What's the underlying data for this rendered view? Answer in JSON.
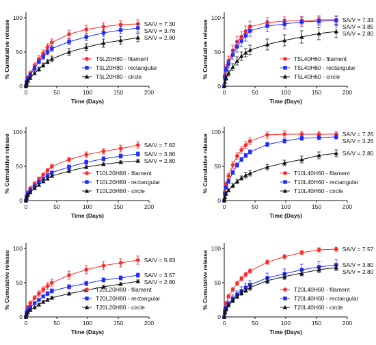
{
  "chart_data": [
    {
      "type": "line",
      "xlabel": "Time (Days)",
      "ylabel": "% Cumulative release",
      "xlim": [
        0,
        200
      ],
      "ylim": [
        0,
        100
      ],
      "xticks": [
        "0",
        "50",
        "100",
        "150",
        "200"
      ],
      "yticks": [
        "0",
        "50",
        "100"
      ],
      "grid": false,
      "legend_position": "bottom-right",
      "series": [
        {
          "name": "T5L20H80 - filament",
          "color": "#ff2a2a",
          "marker": "circle",
          "x": [
            0,
            1,
            3,
            7,
            14,
            21,
            28,
            35,
            42,
            70,
            98,
            126,
            154,
            182
          ],
          "y": [
            0,
            7,
            13,
            19,
            30,
            40,
            48,
            57,
            64,
            76,
            83,
            87,
            90,
            91
          ],
          "err": [
            0,
            1,
            2,
            3,
            4,
            5,
            5,
            5,
            5,
            6,
            6,
            6,
            6,
            6
          ],
          "sav_label": "SA/V = 7.30"
        },
        {
          "name": "T5L20H80 - rectangular",
          "color": "#1f2cff",
          "marker": "square",
          "x": [
            0,
            1,
            3,
            7,
            14,
            21,
            28,
            35,
            42,
            70,
            98,
            126,
            154,
            182
          ],
          "y": [
            0,
            6,
            11,
            17,
            26,
            36,
            43,
            50,
            55,
            65,
            72,
            78,
            82,
            85
          ],
          "err": [
            0,
            1,
            2,
            2,
            3,
            3,
            4,
            4,
            4,
            4,
            5,
            5,
            5,
            6
          ],
          "sav_label": "SA/V = 3.76"
        },
        {
          "name": "T5L20H80 - circle",
          "color": "#111111",
          "marker": "triangle",
          "x": [
            0,
            1,
            3,
            7,
            14,
            21,
            28,
            35,
            42,
            70,
            98,
            126,
            154,
            182
          ],
          "y": [
            0,
            4,
            8,
            12,
            19,
            25,
            31,
            36,
            40,
            50,
            57,
            63,
            67,
            71
          ],
          "err": [
            0,
            1,
            1,
            2,
            2,
            3,
            3,
            3,
            4,
            5,
            5,
            6,
            6,
            6
          ],
          "sav_label": "SA/V = 2.80"
        }
      ]
    },
    {
      "type": "line",
      "xlabel": "Time (Days)",
      "ylabel": "% Cumulative release",
      "xlim": [
        0,
        200
      ],
      "ylim": [
        0,
        100
      ],
      "xticks": [
        "0",
        "50",
        "100",
        "150",
        "200"
      ],
      "yticks": [
        "0",
        "50",
        "100"
      ],
      "grid": false,
      "legend_position": "bottom-right",
      "series": [
        {
          "name": "T5L40H60 - filament",
          "color": "#ff2a2a",
          "marker": "circle",
          "x": [
            0,
            1,
            3,
            7,
            14,
            21,
            28,
            35,
            42,
            70,
            98,
            126,
            154,
            182
          ],
          "y": [
            0,
            15,
            27,
            37,
            52,
            65,
            72,
            80,
            87,
            93,
            95,
            96,
            97,
            97
          ],
          "err": [
            0,
            3,
            5,
            7,
            8,
            8,
            8,
            8,
            8,
            7,
            7,
            6,
            6,
            6
          ],
          "sav_label": "SA/V = 7.33"
        },
        {
          "name": "T5L40H60 - rectangular",
          "color": "#1f2cff",
          "marker": "square",
          "x": [
            0,
            1,
            3,
            7,
            14,
            21,
            28,
            35,
            42,
            70,
            98,
            126,
            154,
            182
          ],
          "y": [
            0,
            13,
            24,
            33,
            46,
            58,
            66,
            74,
            81,
            88,
            91,
            94,
            95,
            96
          ],
          "err": [
            0,
            3,
            5,
            6,
            7,
            8,
            8,
            8,
            8,
            8,
            7,
            7,
            6,
            6
          ],
          "sav_label": "SA/V = 3.85"
        },
        {
          "name": "T5L40H60 - circle",
          "color": "#111111",
          "marker": "triangle",
          "x": [
            0,
            1,
            3,
            7,
            14,
            21,
            28,
            35,
            42,
            70,
            98,
            126,
            154,
            182
          ],
          "y": [
            0,
            6,
            12,
            19,
            28,
            37,
            44,
            49,
            53,
            61,
            67,
            72,
            77,
            80
          ],
          "err": [
            0,
            2,
            3,
            4,
            5,
            6,
            6,
            6,
            7,
            8,
            8,
            9,
            9,
            9
          ],
          "sav_label": "SA/V = 2.80"
        }
      ]
    },
    {
      "type": "line",
      "xlabel": "Time (Days)",
      "ylabel": "% Cumulative release",
      "xlim": [
        0,
        200
      ],
      "ylim": [
        0,
        100
      ],
      "xticks": [
        "0",
        "50",
        "100",
        "150",
        "200"
      ],
      "yticks": [
        "0",
        "50",
        "100"
      ],
      "grid": false,
      "legend_position": "bottom-right",
      "series": [
        {
          "name": "T10L20H80 - filament",
          "color": "#ff2a2a",
          "marker": "circle",
          "x": [
            0,
            1,
            3,
            7,
            14,
            21,
            28,
            35,
            42,
            70,
            98,
            126,
            154,
            182
          ],
          "y": [
            0,
            7,
            12,
            18,
            25,
            32,
            38,
            44,
            50,
            60,
            67,
            72,
            76,
            81
          ],
          "err": [
            0,
            1,
            1,
            2,
            2,
            2,
            2,
            3,
            3,
            3,
            4,
            4,
            5,
            5
          ],
          "sav_label": "SA/V = 7.82"
        },
        {
          "name": "T10L20H80 - rectangular",
          "color": "#1f2cff",
          "marker": "square",
          "x": [
            0,
            1,
            3,
            7,
            14,
            21,
            28,
            35,
            42,
            70,
            98,
            126,
            154,
            182
          ],
          "y": [
            0,
            5,
            10,
            15,
            21,
            27,
            32,
            37,
            41,
            49,
            56,
            61,
            65,
            68
          ],
          "err": [
            0,
            1,
            1,
            1,
            2,
            2,
            2,
            2,
            2,
            3,
            3,
            3,
            3,
            3
          ],
          "sav_label": "SA/V = 3.80"
        },
        {
          "name": "T10L20H80 - circle",
          "color": "#111111",
          "marker": "triangle",
          "x": [
            0,
            1,
            3,
            7,
            14,
            21,
            28,
            35,
            42,
            70,
            98,
            126,
            154,
            182
          ],
          "y": [
            0,
            4,
            8,
            12,
            18,
            23,
            28,
            32,
            36,
            43,
            49,
            53,
            56,
            58
          ],
          "err": [
            0,
            1,
            1,
            1,
            1,
            2,
            2,
            2,
            2,
            2,
            2,
            2,
            2,
            2
          ],
          "sav_label": "SA/V = 2.80"
        }
      ]
    },
    {
      "type": "line",
      "xlabel": "Time (Days)",
      "ylabel": "% Cumulative release",
      "xlim": [
        0,
        200
      ],
      "ylim": [
        0,
        100
      ],
      "xticks": [
        "0",
        "50",
        "100",
        "150",
        "200"
      ],
      "yticks": [
        "0",
        "50",
        "100"
      ],
      "grid": false,
      "legend_position": "bottom-right",
      "series": [
        {
          "name": "T10L40H60 - filament",
          "color": "#ff2a2a",
          "marker": "circle",
          "x": [
            0,
            1,
            3,
            7,
            14,
            21,
            28,
            35,
            42,
            70,
            98,
            126,
            154,
            182
          ],
          "y": [
            0,
            12,
            24,
            36,
            52,
            65,
            74,
            81,
            87,
            96,
            97,
            97,
            97,
            97
          ],
          "err": [
            0,
            2,
            3,
            4,
            5,
            5,
            5,
            5,
            5,
            5,
            5,
            4,
            4,
            4
          ],
          "sav_label": "SA/V = 7.26"
        },
        {
          "name": "T10L40H60 - rectangular",
          "color": "#1f2cff",
          "marker": "square",
          "x": [
            0,
            1,
            3,
            7,
            14,
            21,
            28,
            35,
            42,
            70,
            98,
            126,
            154,
            182
          ],
          "y": [
            0,
            10,
            19,
            28,
            41,
            52,
            60,
            66,
            71,
            82,
            87,
            91,
            92,
            93
          ],
          "err": [
            0,
            2,
            2,
            3,
            3,
            3,
            3,
            3,
            3,
            3,
            3,
            3,
            3,
            3
          ],
          "sav_label": "SA/V = 3.26"
        },
        {
          "name": "T10L40H60 - circle",
          "color": "#111111",
          "marker": "triangle",
          "x": [
            0,
            1,
            3,
            7,
            14,
            21,
            28,
            35,
            42,
            70,
            98,
            126,
            154,
            182
          ],
          "y": [
            0,
            5,
            10,
            15,
            22,
            28,
            33,
            37,
            40,
            49,
            55,
            60,
            66,
            69
          ],
          "err": [
            0,
            1,
            2,
            2,
            3,
            3,
            3,
            4,
            4,
            4,
            4,
            5,
            5,
            5
          ],
          "sav_label": "SA/V = 2.80"
        }
      ]
    },
    {
      "type": "line",
      "xlabel": "Time (Days)",
      "ylabel": "% Cumulative release",
      "xlim": [
        0,
        200
      ],
      "ylim": [
        0,
        100
      ],
      "xticks": [
        "0",
        "50",
        "100",
        "150",
        "200"
      ],
      "yticks": [
        "0",
        "50",
        "100"
      ],
      "grid": false,
      "legend_position": "bottom-right",
      "series": [
        {
          "name": "T20L20H80 - filament",
          "color": "#ff2a2a",
          "marker": "circle",
          "x": [
            0,
            1,
            3,
            7,
            14,
            21,
            28,
            35,
            42,
            70,
            98,
            126,
            154,
            182
          ],
          "y": [
            0,
            8,
            14,
            20,
            28,
            34,
            40,
            45,
            50,
            61,
            69,
            75,
            79,
            83
          ],
          "err": [
            0,
            1,
            2,
            3,
            3,
            4,
            4,
            5,
            5,
            6,
            6,
            6,
            6,
            6
          ],
          "sav_label": "SA/V = 5.83"
        },
        {
          "name": "T20L20H80 - rectangular",
          "color": "#1f2cff",
          "marker": "square",
          "x": [
            0,
            1,
            3,
            7,
            14,
            21,
            28,
            35,
            42,
            70,
            98,
            126,
            154,
            182
          ],
          "y": [
            0,
            5,
            10,
            14,
            20,
            25,
            30,
            34,
            38,
            44,
            49,
            54,
            57,
            61
          ],
          "err": [
            0,
            1,
            1,
            2,
            2,
            2,
            2,
            3,
            3,
            3,
            3,
            3,
            3,
            3
          ],
          "sav_label": "SA/V = 3.67"
        },
        {
          "name": "T20L20H80 - circle",
          "color": "#111111",
          "marker": "triangle",
          "x": [
            0,
            1,
            3,
            7,
            14,
            21,
            28,
            35,
            42,
            70,
            98,
            126,
            154,
            182
          ],
          "y": [
            0,
            4,
            7,
            10,
            14,
            18,
            22,
            25,
            28,
            34,
            39,
            44,
            48,
            52
          ],
          "err": [
            0,
            1,
            1,
            1,
            1,
            2,
            2,
            2,
            2,
            2,
            2,
            2,
            2,
            2
          ],
          "sav_label": "SA/V = 2.80"
        }
      ]
    },
    {
      "type": "line",
      "xlabel": "Time (Days)",
      "ylabel": "% Cumulative release",
      "xlim": [
        0,
        200
      ],
      "ylim": [
        0,
        100
      ],
      "xticks": [
        "0",
        "50",
        "100",
        "150",
        "200"
      ],
      "yticks": [
        "0",
        "50",
        "100"
      ],
      "grid": false,
      "legend_position": "bottom-right",
      "series": [
        {
          "name": "T20L40H60 - filament",
          "color": "#ff2a2a",
          "marker": "circle",
          "x": [
            0,
            1,
            3,
            7,
            14,
            21,
            28,
            35,
            42,
            70,
            98,
            126,
            154,
            182
          ],
          "y": [
            0,
            11,
            20,
            30,
            40,
            49,
            56,
            62,
            67,
            80,
            88,
            94,
            98,
            99
          ],
          "err": [
            0,
            2,
            2,
            3,
            3,
            3,
            3,
            3,
            3,
            3,
            3,
            3,
            3,
            3
          ],
          "sav_label": "SA/V = 7.57"
        },
        {
          "name": "T20L40H60 - rectangular",
          "color": "#1f2cff",
          "marker": "square",
          "x": [
            0,
            1,
            3,
            7,
            14,
            21,
            28,
            35,
            42,
            70,
            98,
            126,
            154,
            182
          ],
          "y": [
            0,
            7,
            13,
            19,
            27,
            33,
            38,
            43,
            47,
            57,
            63,
            69,
            73,
            76
          ],
          "err": [
            0,
            2,
            3,
            4,
            5,
            5,
            6,
            6,
            6,
            7,
            7,
            8,
            8,
            8
          ],
          "sav_label": "SA/V = 3.80"
        },
        {
          "name": "T20L40H60 - circle",
          "color": "#111111",
          "marker": "triangle",
          "x": [
            0,
            1,
            3,
            7,
            14,
            21,
            28,
            35,
            42,
            70,
            98,
            126,
            154,
            182
          ],
          "y": [
            0,
            6,
            11,
            17,
            24,
            30,
            35,
            39,
            43,
            53,
            59,
            64,
            69,
            72
          ],
          "err": [
            0,
            1,
            2,
            2,
            3,
            3,
            3,
            3,
            4,
            4,
            4,
            4,
            4,
            4
          ],
          "sav_label": "SA/V = 2.80"
        }
      ]
    }
  ]
}
